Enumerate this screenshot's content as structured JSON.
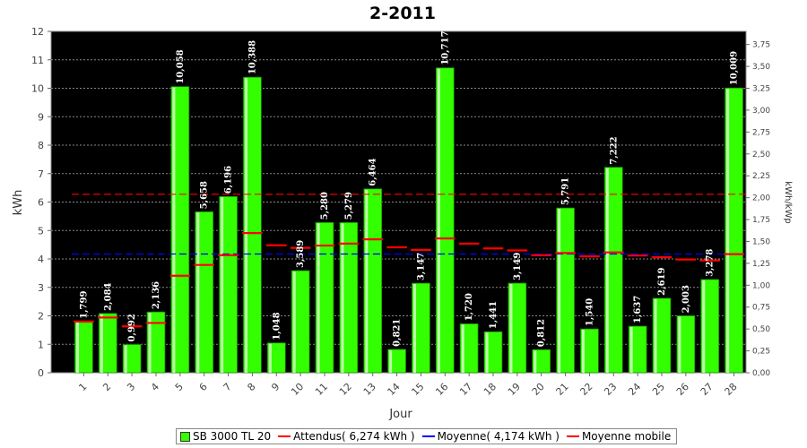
{
  "chart_data": {
    "type": "bar",
    "title": "2-2011",
    "xlabel": "Jour",
    "ylabel": "kWh",
    "ylabel_right": "kWh/kWp",
    "ylim": [
      0,
      12
    ],
    "ylim_right": [
      0,
      3.9
    ],
    "y_ticks": [
      "0",
      "1",
      "2",
      "3",
      "4",
      "5",
      "6",
      "7",
      "8",
      "9",
      "10",
      "11",
      "12"
    ],
    "y_right_ticks": [
      "0,00",
      "0,25",
      "0,50",
      "0,75",
      "1,00",
      "1,25",
      "1,50",
      "1,75",
      "2,00",
      "2,25",
      "2,50",
      "2,75",
      "3,00",
      "3,25",
      "3,50",
      "3,75"
    ],
    "categories": [
      "1",
      "2",
      "3",
      "4",
      "5",
      "6",
      "7",
      "8",
      "9",
      "10",
      "11",
      "12",
      "13",
      "14",
      "15",
      "16",
      "17",
      "18",
      "19",
      "20",
      "21",
      "22",
      "23",
      "24",
      "25",
      "26",
      "27",
      "28"
    ],
    "values": [
      1.799,
      2.084,
      0.992,
      2.136,
      10.058,
      5.658,
      6.196,
      10.388,
      1.048,
      3.589,
      5.28,
      5.279,
      6.464,
      0.821,
      3.147,
      10.717,
      1.72,
      1.441,
      3.149,
      0.812,
      5.791,
      1.54,
      7.222,
      1.637,
      2.619,
      2.003,
      3.278,
      10.009
    ],
    "value_labels": [
      "1,799",
      "2,084",
      "0,992",
      "2,136",
      "10,058",
      "5,658",
      "6,196",
      "10,388",
      "1,048",
      "3,589",
      "5,280",
      "5,279",
      "6,464",
      "0,821",
      "3,147",
      "10,717",
      "1,720",
      "1,441",
      "3,149",
      "0,812",
      "5,791",
      "1,540",
      "7,222",
      "1,637",
      "2,619",
      "2,003",
      "3,278",
      "10,009"
    ],
    "expected": 6.274,
    "average": 4.174,
    "moving_average": [
      1.8,
      1.94,
      1.63,
      1.75,
      3.41,
      3.79,
      4.13,
      4.91,
      4.48,
      4.39,
      4.47,
      4.54,
      4.69,
      4.41,
      4.32,
      4.72,
      4.54,
      4.37,
      4.3,
      4.13,
      4.21,
      4.09,
      4.23,
      4.12,
      4.06,
      3.98,
      3.95,
      4.17
    ],
    "colors": {
      "bar": "#33ff00",
      "expected": "#ff0000",
      "average": "#0000ff",
      "moving": "#ff0000",
      "plot_bg": "#000000",
      "grid": "#888888"
    },
    "grid": true,
    "legend_position": "bottom",
    "legend": [
      {
        "label": "SB 3000 TL 20",
        "kind": "box",
        "color": "#33ff00"
      },
      {
        "label": "Attendus( 6,274 kWh )",
        "kind": "line",
        "color": "#ff0000"
      },
      {
        "label": "Moyenne( 4,174 kWh )",
        "kind": "line",
        "color": "#0000ff"
      },
      {
        "label": "Moyenne mobile",
        "kind": "line",
        "color": "#ff0000"
      }
    ]
  }
}
